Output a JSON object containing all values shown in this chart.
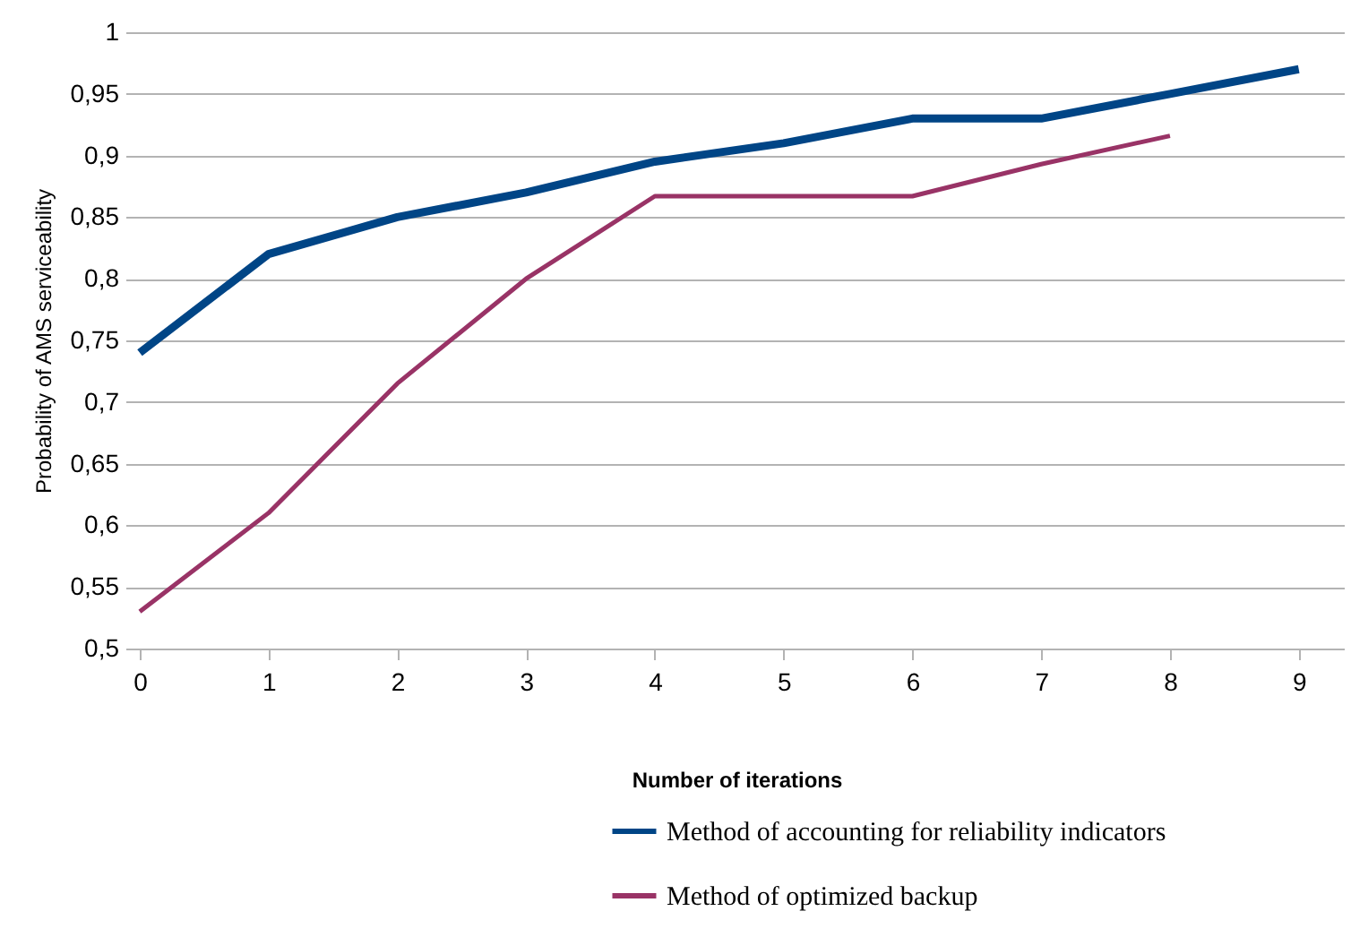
{
  "chart_data": {
    "type": "line",
    "xlabel": "Number of iterations",
    "ylabel": "Probability of AMS serviceability",
    "x": [
      0,
      1,
      2,
      3,
      4,
      5,
      6,
      7,
      8,
      9
    ],
    "series": [
      {
        "name": "Method of accounting for reliability indicators",
        "color": "#004586",
        "values": [
          0.74,
          0.82,
          0.85,
          0.87,
          0.895,
          0.91,
          0.93,
          0.93,
          0.95,
          0.97
        ]
      },
      {
        "name": "Method of optimized backup",
        "color": "#993366",
        "values": [
          0.53,
          0.61,
          0.715,
          0.8,
          0.867,
          0.867,
          0.867,
          0.893,
          0.916,
          null
        ]
      }
    ],
    "xlim": [
      0,
      9.35
    ],
    "xticks": [
      0,
      1,
      2,
      3,
      4,
      5,
      6,
      7,
      8,
      9
    ],
    "ylim": [
      0.5,
      1
    ],
    "yticks": [
      {
        "value": 0.5,
        "label": "0,5"
      },
      {
        "value": 0.55,
        "label": "0,55"
      },
      {
        "value": 0.6,
        "label": "0,6"
      },
      {
        "value": 0.65,
        "label": "0,65"
      },
      {
        "value": 0.7,
        "label": "0,7"
      },
      {
        "value": 0.75,
        "label": "0,75"
      },
      {
        "value": 0.8,
        "label": "0,8"
      },
      {
        "value": 0.85,
        "label": "0,85"
      },
      {
        "value": 0.9,
        "label": "0,9"
      },
      {
        "value": 0.95,
        "label": "0,95"
      },
      {
        "value": 1,
        "label": "1"
      }
    ],
    "grid": "y",
    "legend": "bottom",
    "marker": "none",
    "line_style": "solid"
  }
}
